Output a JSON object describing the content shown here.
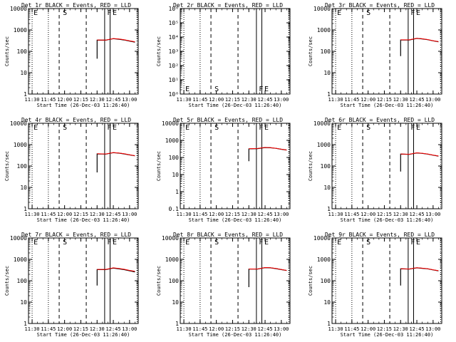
{
  "figure": {
    "xlabel": "Start Time (26-Dec-03 11:26:40)",
    "ylabel": "Counts/sec",
    "x_tick_labels": [
      "11:30",
      "11:45",
      "12:00",
      "12:15",
      "12:30",
      "12:45",
      "13:00"
    ]
  },
  "colors": {
    "events": "#000000",
    "lld": "#ff0000"
  },
  "chart_data": [
    {
      "type": "line",
      "title": "Det 1r BLACK = Events, RED = LLD",
      "ylabel": "Counts/sec",
      "xlabel": "Start Time (26-Dec-03 11:26:40)",
      "xlim": [
        "11:26:40",
        "13:08:00"
      ],
      "ylim": [
        1,
        10000
      ],
      "yscale": "log",
      "ytick_labels": [
        "1",
        "10",
        "100",
        "1000",
        "10000"
      ],
      "vlines": [
        {
          "x": "11:30",
          "style": "dotted"
        },
        {
          "x": "11:45",
          "style": "dotted"
        },
        {
          "x": "11:55",
          "style": "dashed"
        },
        {
          "x": "12:20",
          "style": "dashed"
        },
        {
          "x": "12:37",
          "style": "solid"
        },
        {
          "x": "12:42",
          "style": "solid"
        },
        {
          "x": "13:07",
          "style": "dotted"
        }
      ],
      "annotations": [
        {
          "text": "E",
          "x": "11:30"
        },
        {
          "text": "S",
          "x": "11:57"
        },
        {
          "text": "F",
          "x": "12:38"
        },
        {
          "text": "E",
          "x": "12:43"
        }
      ],
      "series": [
        {
          "name": "Events",
          "color": "#000000",
          "x": [
            "12:30",
            "12:30",
            "12:38",
            "12:45",
            "12:50",
            "12:55",
            "13:00",
            "13:05"
          ],
          "y": [
            45,
            330,
            330,
            390,
            370,
            340,
            300,
            270
          ]
        },
        {
          "name": "LLD",
          "color": "#ff0000",
          "x": [
            "12:30",
            "12:38",
            "12:45",
            "12:50",
            "12:55",
            "13:00",
            "13:05"
          ],
          "y": [
            340,
            335,
            395,
            380,
            350,
            310,
            280
          ]
        }
      ]
    },
    {
      "type": "line",
      "title": "Det 2r BLACK = Events, RED = LLD",
      "ylabel": "Counts/sec",
      "xlabel": "Start Time (26-Dec-03 11:26:40)",
      "xlim": [
        "11:26:40",
        "13:08:00"
      ],
      "ylim": [
        1,
        1000000
      ],
      "yscale": "log",
      "ytick_labels": [
        "10⁰",
        "10¹",
        "10²",
        "10³",
        "10⁴",
        "10⁵",
        "10⁶"
      ],
      "vlines": [
        {
          "x": "11:30",
          "style": "dotted"
        },
        {
          "x": "11:45",
          "style": "dotted"
        },
        {
          "x": "11:55",
          "style": "dashed"
        },
        {
          "x": "12:20",
          "style": "dashed"
        },
        {
          "x": "12:37",
          "style": "solid"
        },
        {
          "x": "12:42",
          "style": "solid"
        },
        {
          "x": "13:07",
          "style": "dotted"
        }
      ],
      "annotations": [
        {
          "text": "E",
          "x": "11:30"
        },
        {
          "text": "S",
          "x": "11:57"
        },
        {
          "text": "F",
          "x": "12:38"
        },
        {
          "text": "E",
          "x": "12:43"
        }
      ],
      "series": []
    },
    {
      "type": "line",
      "title": "Det 3r BLACK = Events, RED = LLD",
      "ylabel": "Counts/sec",
      "xlabel": "Start Time (26-Dec-03 11:26:40)",
      "xlim": [
        "11:26:40",
        "13:08:00"
      ],
      "ylim": [
        1,
        10000
      ],
      "yscale": "log",
      "ytick_labels": [
        "1",
        "10",
        "100",
        "1000",
        "10000"
      ],
      "vlines": [
        {
          "x": "11:30",
          "style": "dotted"
        },
        {
          "x": "11:45",
          "style": "dotted"
        },
        {
          "x": "11:55",
          "style": "dashed"
        },
        {
          "x": "12:20",
          "style": "dashed"
        },
        {
          "x": "12:37",
          "style": "solid"
        },
        {
          "x": "12:42",
          "style": "solid"
        },
        {
          "x": "13:07",
          "style": "dotted"
        }
      ],
      "annotations": [
        {
          "text": "E",
          "x": "11:30"
        },
        {
          "text": "S",
          "x": "11:57"
        },
        {
          "text": "F",
          "x": "12:38"
        },
        {
          "text": "E",
          "x": "12:43"
        }
      ],
      "series": [
        {
          "name": "Events",
          "color": "#000000",
          "x": [
            "12:30",
            "12:30",
            "12:38",
            "12:45",
            "12:50",
            "12:55",
            "13:00",
            "13:05"
          ],
          "y": [
            60,
            340,
            340,
            400,
            380,
            350,
            310,
            280
          ]
        },
        {
          "name": "LLD",
          "color": "#ff0000",
          "x": [
            "12:30",
            "12:38",
            "12:45",
            "12:50",
            "12:55",
            "13:00",
            "13:05"
          ],
          "y": [
            345,
            345,
            405,
            385,
            355,
            315,
            285
          ]
        }
      ]
    },
    {
      "type": "line",
      "title": "Det 4r BLACK = Events, RED = LLD",
      "ylabel": "Counts/sec",
      "xlabel": "Start Time (26-Dec-03 11:26:40)",
      "xlim": [
        "11:26:40",
        "13:08:00"
      ],
      "ylim": [
        1,
        10000
      ],
      "yscale": "log",
      "ytick_labels": [
        "1",
        "10",
        "100",
        "1000",
        "10000"
      ],
      "vlines": [
        {
          "x": "11:30",
          "style": "dotted"
        },
        {
          "x": "11:45",
          "style": "dotted"
        },
        {
          "x": "11:55",
          "style": "dashed"
        },
        {
          "x": "12:20",
          "style": "dashed"
        },
        {
          "x": "12:37",
          "style": "solid"
        },
        {
          "x": "12:42",
          "style": "solid"
        },
        {
          "x": "13:07",
          "style": "dotted"
        }
      ],
      "annotations": [
        {
          "text": "E",
          "x": "11:30"
        },
        {
          "text": "S",
          "x": "11:57"
        },
        {
          "text": "F",
          "x": "12:38"
        },
        {
          "text": "E",
          "x": "12:43"
        }
      ],
      "series": [
        {
          "name": "Events",
          "color": "#000000",
          "x": [
            "12:30",
            "12:30",
            "12:38",
            "12:45",
            "12:50",
            "12:55",
            "13:00",
            "13:05"
          ],
          "y": [
            50,
            370,
            360,
            420,
            400,
            370,
            330,
            300
          ]
        },
        {
          "name": "LLD",
          "color": "#ff0000",
          "x": [
            "12:30",
            "12:38",
            "12:45",
            "12:50",
            "12:55",
            "13:00",
            "13:05"
          ],
          "y": [
            375,
            365,
            425,
            405,
            375,
            335,
            305
          ]
        }
      ]
    },
    {
      "type": "line",
      "title": "Det 5r BLACK = Events, RED = LLD",
      "ylabel": "Counts/sec",
      "xlabel": "Start Time (26-Dec-03 11:26:40)",
      "xlim": [
        "11:26:40",
        "13:08:00"
      ],
      "ylim": [
        0.1,
        10000
      ],
      "yscale": "log",
      "ytick_labels": [
        "0.1",
        "1",
        "10",
        "100",
        "1000",
        "10000"
      ],
      "vlines": [
        {
          "x": "11:30",
          "style": "dotted"
        },
        {
          "x": "11:45",
          "style": "dotted"
        },
        {
          "x": "11:55",
          "style": "dashed"
        },
        {
          "x": "12:20",
          "style": "dashed"
        },
        {
          "x": "12:37",
          "style": "solid"
        },
        {
          "x": "12:42",
          "style": "solid"
        },
        {
          "x": "13:07",
          "style": "dotted"
        }
      ],
      "annotations": [
        {
          "text": "E",
          "x": "11:30"
        },
        {
          "text": "S",
          "x": "11:57"
        },
        {
          "text": "F",
          "x": "12:38"
        },
        {
          "text": "E",
          "x": "12:43"
        }
      ],
      "series": [
        {
          "name": "Events",
          "color": "#000000",
          "x": [
            "12:30",
            "12:30",
            "12:38",
            "12:45",
            "12:50",
            "12:55",
            "13:00",
            "13:05"
          ],
          "y": [
            60,
            320,
            330,
            380,
            370,
            340,
            300,
            270
          ]
        },
        {
          "name": "LLD",
          "color": "#ff0000",
          "x": [
            "12:30",
            "12:38",
            "12:45",
            "12:50",
            "12:55",
            "13:00",
            "13:05"
          ],
          "y": [
            325,
            335,
            385,
            375,
            345,
            305,
            275
          ]
        }
      ]
    },
    {
      "type": "line",
      "title": "Det 6r BLACK = Events, RED = LLD",
      "ylabel": "Counts/sec",
      "xlabel": "Start Time (26-Dec-03 11:26:40)",
      "xlim": [
        "11:26:40",
        "13:08:00"
      ],
      "ylim": [
        1,
        10000
      ],
      "yscale": "log",
      "ytick_labels": [
        "1",
        "10",
        "100",
        "1000",
        "10000"
      ],
      "vlines": [
        {
          "x": "11:30",
          "style": "dotted"
        },
        {
          "x": "11:45",
          "style": "dotted"
        },
        {
          "x": "11:55",
          "style": "dashed"
        },
        {
          "x": "12:20",
          "style": "dashed"
        },
        {
          "x": "12:37",
          "style": "solid"
        },
        {
          "x": "12:42",
          "style": "solid"
        },
        {
          "x": "13:07",
          "style": "dotted"
        }
      ],
      "annotations": [
        {
          "text": "E",
          "x": "11:30"
        },
        {
          "text": "S",
          "x": "11:57"
        },
        {
          "text": "F",
          "x": "12:38"
        },
        {
          "text": "E",
          "x": "12:43"
        }
      ],
      "series": [
        {
          "name": "Events",
          "color": "#000000",
          "x": [
            "12:30",
            "12:30",
            "12:38",
            "12:45",
            "12:50",
            "12:55",
            "13:00",
            "13:05"
          ],
          "y": [
            55,
            360,
            350,
            410,
            390,
            360,
            320,
            290
          ]
        },
        {
          "name": "LLD",
          "color": "#ff0000",
          "x": [
            "12:30",
            "12:38",
            "12:45",
            "12:50",
            "12:55",
            "13:00",
            "13:05"
          ],
          "y": [
            365,
            355,
            415,
            395,
            365,
            325,
            295
          ]
        }
      ]
    },
    {
      "type": "line",
      "title": "Det 7r BLACK = Events, RED = LLD",
      "ylabel": "Counts/sec",
      "xlabel": "Start Time (26-Dec-03 11:26:40)",
      "xlim": [
        "11:26:40",
        "13:08:00"
      ],
      "ylim": [
        1,
        10000
      ],
      "yscale": "log",
      "ytick_labels": [
        "1",
        "10",
        "100",
        "1000",
        "10000"
      ],
      "vlines": [
        {
          "x": "11:30",
          "style": "dotted"
        },
        {
          "x": "11:45",
          "style": "dotted"
        },
        {
          "x": "11:55",
          "style": "dashed"
        },
        {
          "x": "12:20",
          "style": "dashed"
        },
        {
          "x": "12:37",
          "style": "solid"
        },
        {
          "x": "12:42",
          "style": "solid"
        },
        {
          "x": "13:07",
          "style": "dotted"
        }
      ],
      "annotations": [
        {
          "text": "E",
          "x": "11:30"
        },
        {
          "text": "S",
          "x": "11:57"
        },
        {
          "text": "F",
          "x": "12:38"
        },
        {
          "text": "E",
          "x": "12:43"
        }
      ],
      "series": [
        {
          "name": "Events",
          "color": "#000000",
          "x": [
            "12:30",
            "12:30",
            "12:38",
            "12:45",
            "12:50",
            "12:55",
            "13:00",
            "13:05"
          ],
          "y": [
            60,
            330,
            330,
            390,
            360,
            330,
            290,
            260
          ]
        },
        {
          "name": "LLD",
          "color": "#ff0000",
          "x": [
            "12:30",
            "12:38",
            "12:45",
            "12:50",
            "12:55",
            "13:00",
            "13:05"
          ],
          "y": [
            340,
            340,
            400,
            375,
            345,
            305,
            275
          ]
        }
      ]
    },
    {
      "type": "line",
      "title": "Det 8r BLACK = Events, RED = LLD",
      "ylabel": "Counts/sec",
      "xlabel": "Start Time (26-Dec-03 11:26:40)",
      "xlim": [
        "11:26:40",
        "13:08:00"
      ],
      "ylim": [
        1,
        10000
      ],
      "yscale": "log",
      "ytick_labels": [
        "1",
        "10",
        "100",
        "1000",
        "10000"
      ],
      "vlines": [
        {
          "x": "11:30",
          "style": "dotted"
        },
        {
          "x": "11:45",
          "style": "dotted"
        },
        {
          "x": "11:55",
          "style": "dashed"
        },
        {
          "x": "12:20",
          "style": "dashed"
        },
        {
          "x": "12:37",
          "style": "solid"
        },
        {
          "x": "12:42",
          "style": "solid"
        },
        {
          "x": "13:07",
          "style": "dotted"
        }
      ],
      "annotations": [
        {
          "text": "E",
          "x": "11:30"
        },
        {
          "text": "S",
          "x": "11:57"
        },
        {
          "text": "F",
          "x": "12:38"
        },
        {
          "text": "E",
          "x": "12:43"
        }
      ],
      "series": [
        {
          "name": "Events",
          "color": "#000000",
          "x": [
            "12:30",
            "12:30",
            "12:38",
            "12:45",
            "12:50",
            "12:55",
            "13:00",
            "13:05"
          ],
          "y": [
            50,
            350,
            350,
            410,
            400,
            370,
            330,
            300
          ]
        },
        {
          "name": "LLD",
          "color": "#ff0000",
          "x": [
            "12:30",
            "12:38",
            "12:45",
            "12:50",
            "12:55",
            "13:00",
            "13:05"
          ],
          "y": [
            355,
            355,
            415,
            405,
            375,
            335,
            305
          ]
        }
      ]
    },
    {
      "type": "line",
      "title": "Det 9r BLACK = Events, RED = LLD",
      "ylabel": "Counts/sec",
      "xlabel": "Start Time (26-Dec-03 11:26:40)",
      "xlim": [
        "11:26:40",
        "13:08:00"
      ],
      "ylim": [
        1,
        10000
      ],
      "yscale": "log",
      "ytick_labels": [
        "1",
        "10",
        "100",
        "1000",
        "10000"
      ],
      "vlines": [
        {
          "x": "11:30",
          "style": "dotted"
        },
        {
          "x": "11:45",
          "style": "dotted"
        },
        {
          "x": "11:55",
          "style": "dashed"
        },
        {
          "x": "12:20",
          "style": "dashed"
        },
        {
          "x": "12:37",
          "style": "solid"
        },
        {
          "x": "12:42",
          "style": "solid"
        },
        {
          "x": "13:07",
          "style": "dotted"
        }
      ],
      "annotations": [
        {
          "text": "E",
          "x": "11:30"
        },
        {
          "text": "S",
          "x": "11:57"
        },
        {
          "text": "F",
          "x": "12:38"
        },
        {
          "text": "E",
          "x": "12:43"
        }
      ],
      "series": [
        {
          "name": "Events",
          "color": "#000000",
          "x": [
            "12:30",
            "12:30",
            "12:38",
            "12:45",
            "12:50",
            "12:55",
            "13:00",
            "13:05"
          ],
          "y": [
            60,
            360,
            350,
            400,
            380,
            360,
            320,
            290
          ]
        },
        {
          "name": "LLD",
          "color": "#ff0000",
          "x": [
            "12:30",
            "12:38",
            "12:45",
            "12:50",
            "12:55",
            "13:00",
            "13:05"
          ],
          "y": [
            365,
            355,
            405,
            385,
            365,
            325,
            295
          ]
        }
      ]
    }
  ]
}
